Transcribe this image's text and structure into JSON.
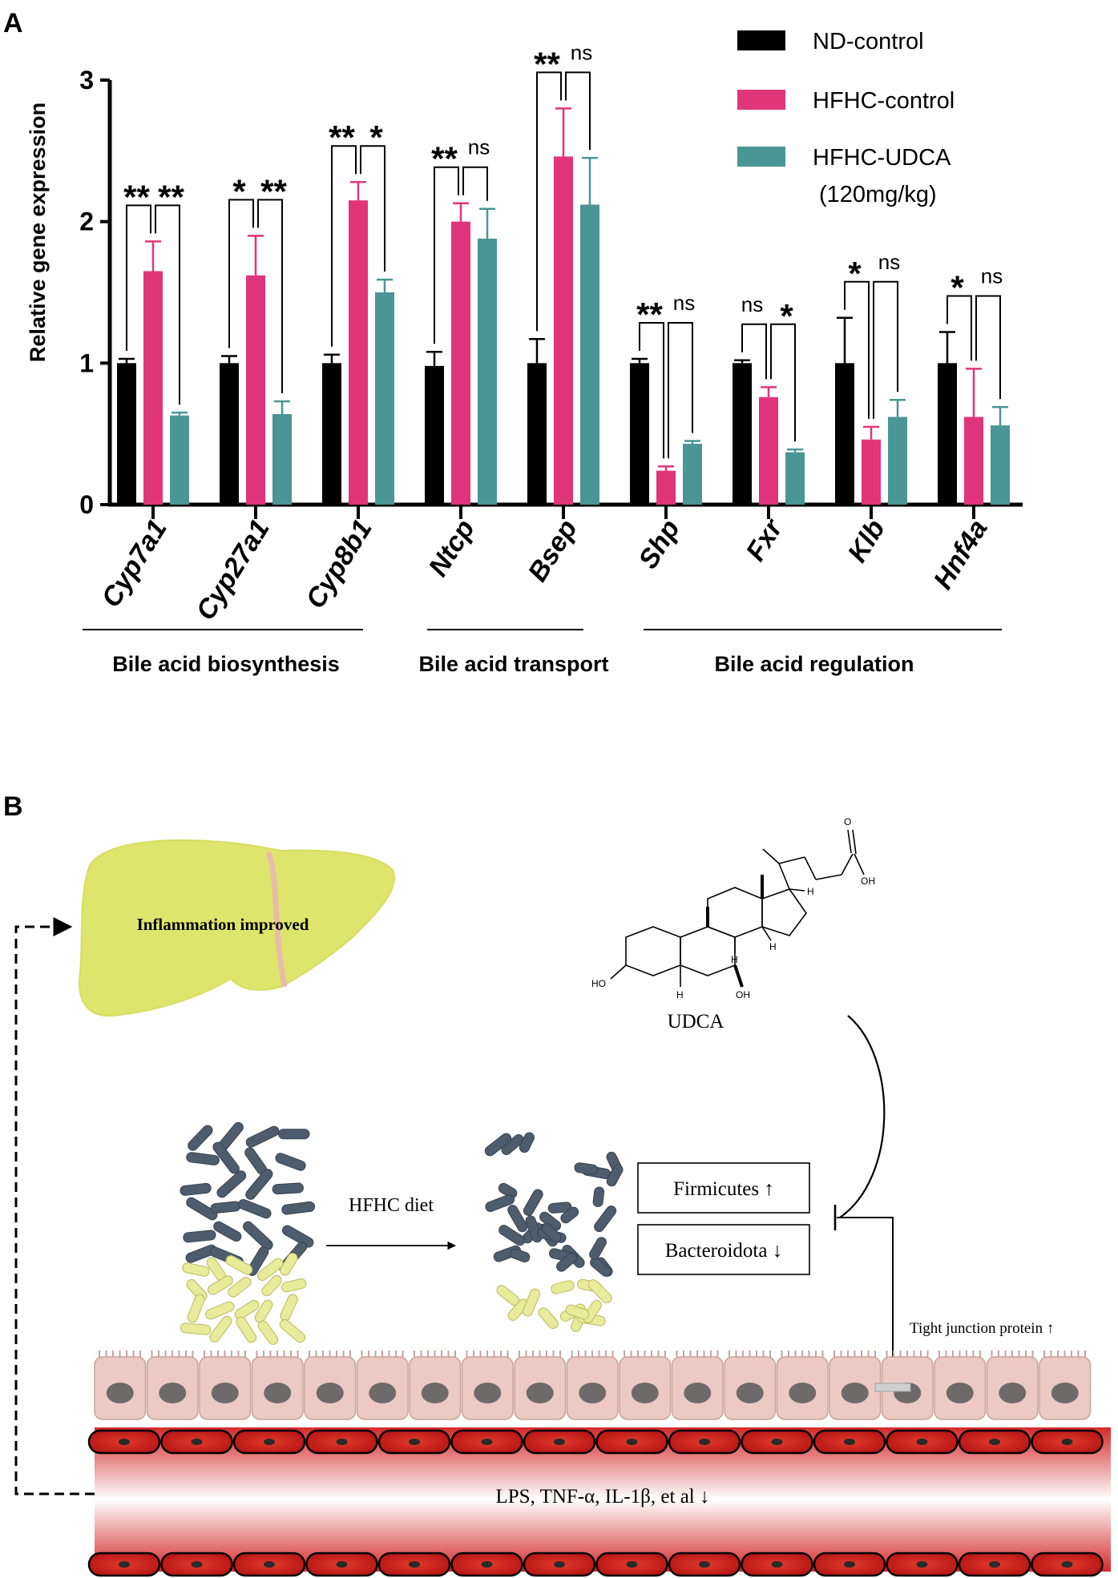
{
  "panel_a": {
    "letter": "A",
    "chart_data": {
      "type": "bar",
      "ylabel": "Relative gene expression",
      "ylim": [
        0,
        3
      ],
      "yticks": [
        "0",
        "1",
        "2",
        "3"
      ],
      "categories": [
        "Cyp7a1",
        "Cyp27a1",
        "Cyp8b1",
        "Ntcp",
        "Bsep",
        "Shp",
        "Fxr",
        "Klb",
        "Hnf4a"
      ],
      "series": [
        {
          "name": "ND-control",
          "color": "#000000",
          "values": [
            1.0,
            1.0,
            1.0,
            0.98,
            1.0,
            1.0,
            1.0,
            1.0,
            1.0
          ],
          "errors": [
            0.03,
            0.05,
            0.06,
            0.1,
            0.17,
            0.03,
            0.02,
            0.32,
            0.22
          ]
        },
        {
          "name": "HFHC-control",
          "color": "#e0357a",
          "values": [
            1.65,
            1.62,
            2.15,
            2.0,
            2.46,
            0.24,
            0.76,
            0.46,
            0.62
          ],
          "errors": [
            0.21,
            0.28,
            0.13,
            0.13,
            0.34,
            0.03,
            0.07,
            0.09,
            0.34
          ]
        },
        {
          "name": "HFHC-UDCA",
          "color": "#4a9595",
          "values": [
            0.63,
            0.64,
            1.5,
            1.88,
            2.12,
            0.43,
            0.37,
            0.62,
            0.56
          ],
          "errors": [
            0.02,
            0.09,
            0.09,
            0.21,
            0.33,
            0.02,
            0.02,
            0.12,
            0.13
          ]
        }
      ],
      "legend": [
        "ND-control",
        "HFHC-control",
        "HFHC-UDCA"
      ],
      "legend_extra": "(120mg/kg)",
      "legend_position": "top-right",
      "significance": [
        {
          "left": "**",
          "right": "**"
        },
        {
          "left": "*",
          "right": "**"
        },
        {
          "left": "**",
          "right": "*"
        },
        {
          "left": "**",
          "right": "ns"
        },
        {
          "left": "**",
          "right": "ns"
        },
        {
          "left": "**",
          "right": "ns"
        },
        {
          "left": "ns",
          "right": "*"
        },
        {
          "left": "*",
          "right": "ns"
        },
        {
          "left": "*",
          "right": "ns"
        }
      ],
      "groups": [
        {
          "label": "Bile acid biosynthesis",
          "from": 0,
          "to": 2
        },
        {
          "label": "Bile acid transport",
          "from": 3,
          "to": 4
        },
        {
          "label": "Bile acid regulation",
          "from": 5,
          "to": 8
        }
      ]
    }
  },
  "panel_b": {
    "letter": "B",
    "liver_label": "Inflammation improved",
    "molecule_label": "UDCA",
    "atom_labels": [
      "OH",
      "O",
      "HO",
      "OH",
      "H",
      "H",
      "H",
      "H"
    ],
    "diet_label": "HFHC diet",
    "box_1": "Firmicutes ↑",
    "box_2": "Bacteroidota ↓",
    "tight_junction": "Tight junction protein ↑",
    "inflammation_text": "LPS, TNF-α, IL-1β, et al ↓",
    "colors": {
      "liver": "#dfe56a",
      "bacteria_dark": "#4e5d6e",
      "bacteria_light": "#e8eb9a",
      "cell": "#eccac3",
      "nucleus": "#6f6a6a",
      "vessel": "#c81e1e"
    }
  }
}
